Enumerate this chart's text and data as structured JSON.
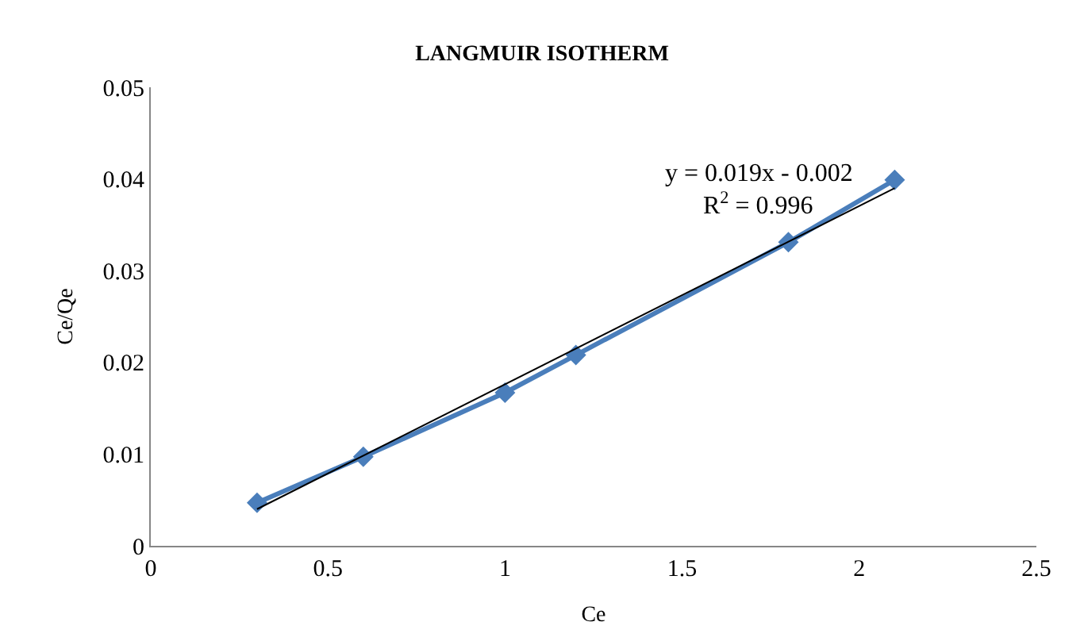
{
  "chart_data": {
    "type": "line",
    "title": "LANGMUIR ISOTHERM",
    "xlabel": "Ce",
    "ylabel": "Ce/Qe",
    "x": [
      0.3,
      0.6,
      1.0,
      1.2,
      1.8,
      2.1
    ],
    "series": [
      {
        "color": "#4a7ebb",
        "values": [
          0.0047,
          0.0097,
          0.0167,
          0.0208,
          0.0331,
          0.0399
        ],
        "marker": "diamond"
      },
      {
        "type": "line",
        "color": "#000000",
        "x": [
          0.3,
          2.1
        ],
        "values": [
          0.004,
          0.039
        ],
        "marker": "none"
      }
    ],
    "annotations": [
      "y = 0.019x - 0.002",
      "R$^{2}$ = 0.996"
    ],
    "xlim": [
      0,
      2.5
    ],
    "xticks": [
      0,
      0.5,
      1,
      1.5,
      2,
      2.5
    ],
    "ylim": [
      0,
      0.05
    ],
    "yticks": [
      0,
      0.01,
      0.02,
      0.03,
      0.04,
      0.05
    ],
    "grid": false
  }
}
